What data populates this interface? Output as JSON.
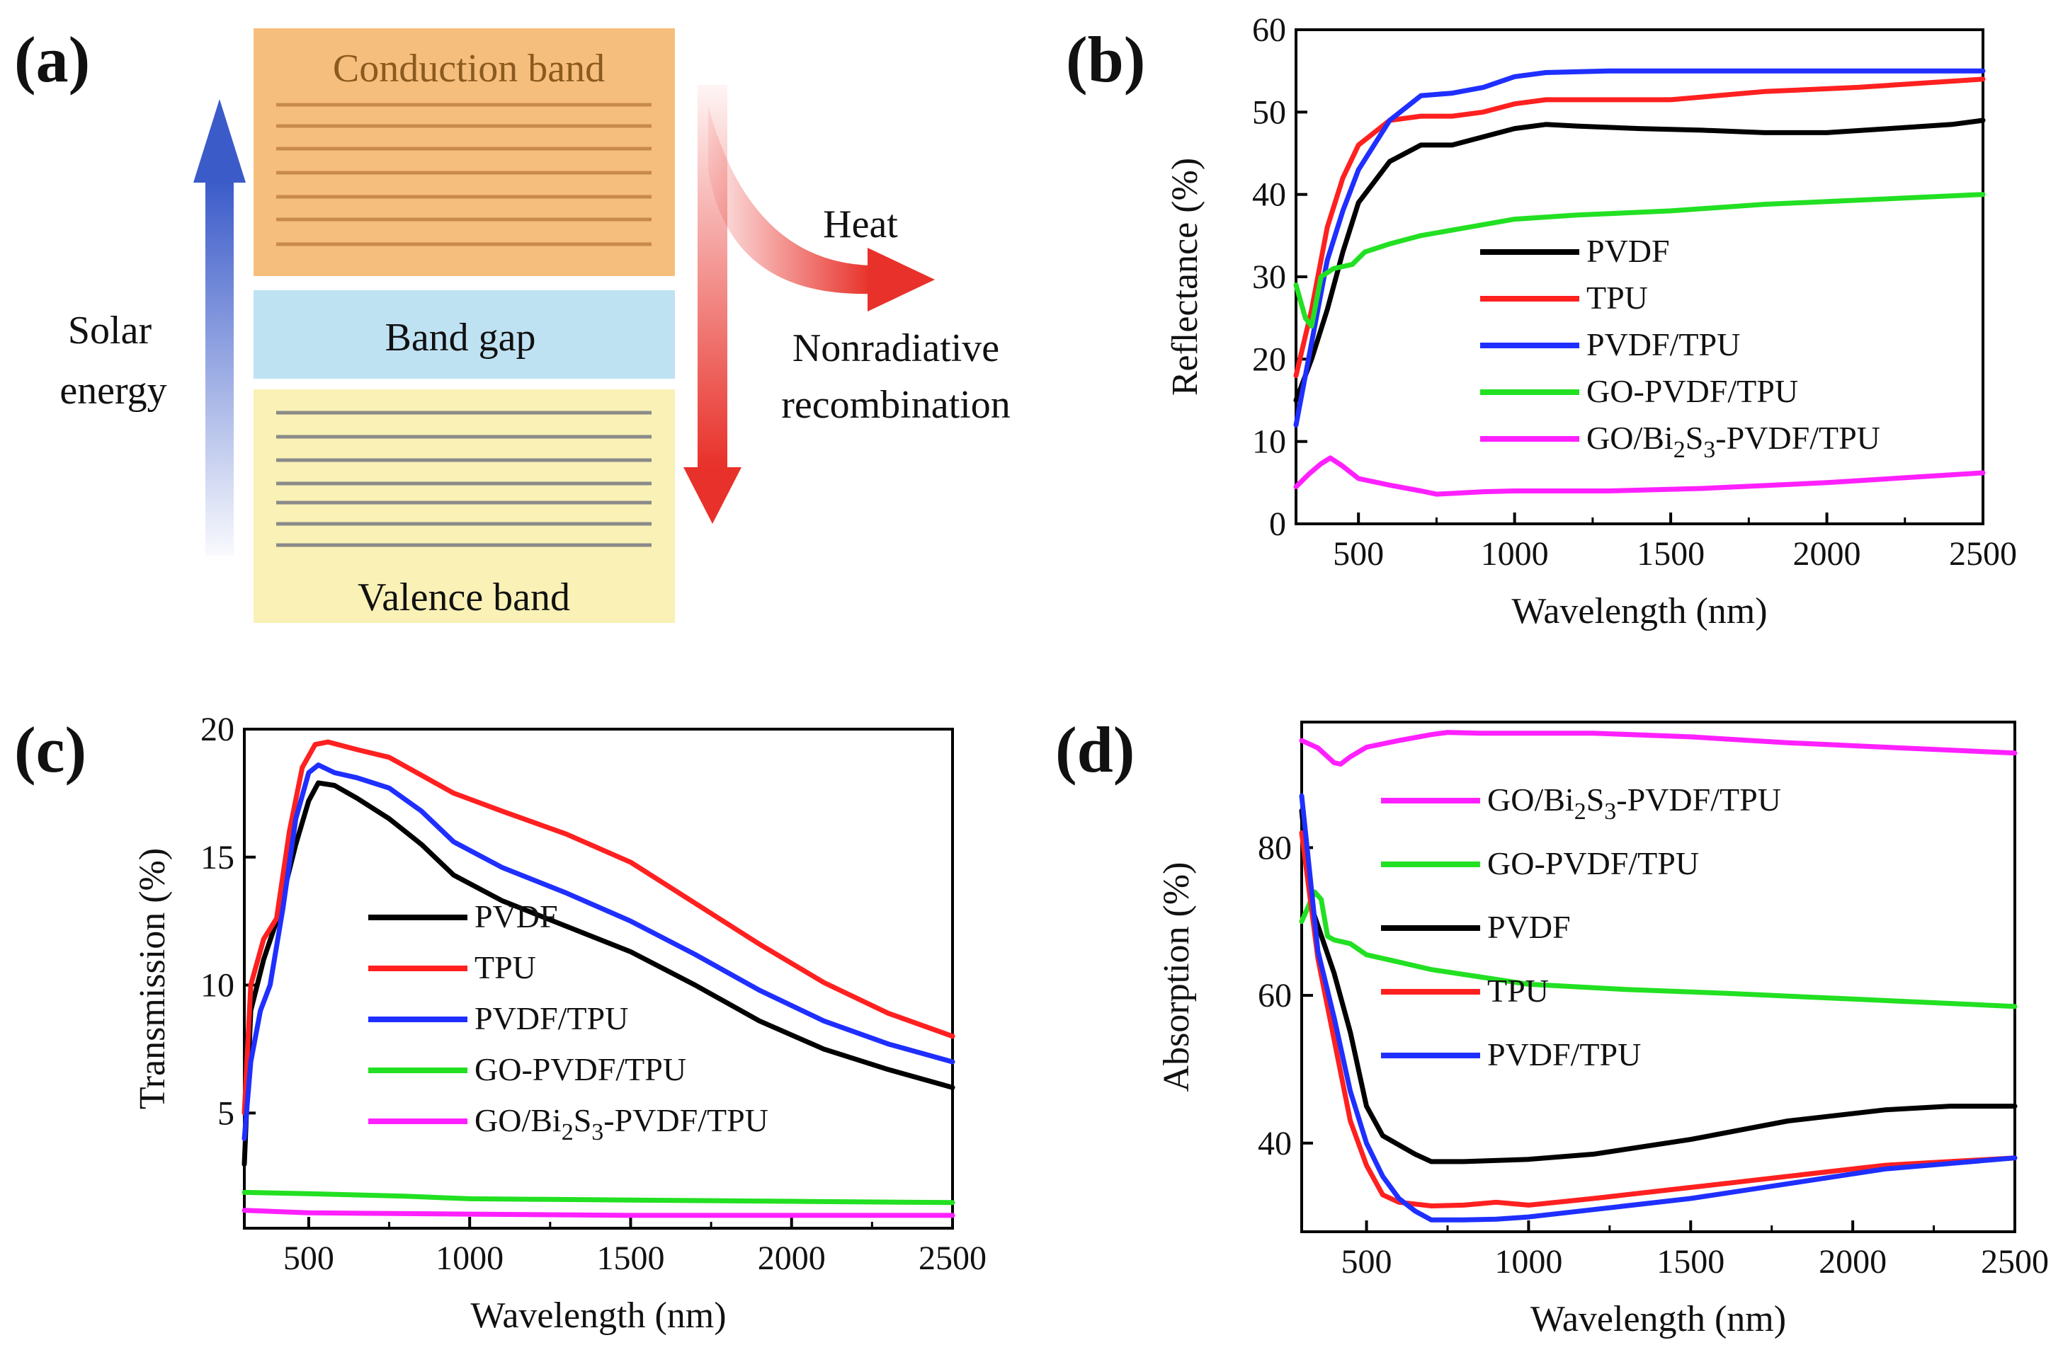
{
  "panel_labels": {
    "a": "(a)",
    "b": "(b)",
    "c": "(c)",
    "d": "(d)"
  },
  "diagram": {
    "conduction_band": "Conduction band",
    "band_gap": "Band gap",
    "valence_band": "Valence band",
    "solar_line1": "Solar",
    "solar_line2": "energy",
    "heat": "Heat",
    "nonrad_line1": "Nonradiative",
    "nonrad_line2": "recombination",
    "colors": {
      "conduction": "#f6be7d",
      "gap": "#bfe2f3",
      "valence": "#f9f1b5",
      "arrow_blue": "#3b5bc9",
      "arrow_red": "#e8312a"
    }
  },
  "colors": {
    "PVDF": "#000000",
    "TPU": "#ff2020",
    "PVDF/TPU": "#1f2fff",
    "GO-PVDF/TPU": "#22e022",
    "GO/Bi2S3-PVDF/TPU": "#ff20ff"
  },
  "legend_text": {
    "PVDF": "PVDF",
    "TPU": "TPU",
    "PVDF/TPU": "PVDF/TPU",
    "GO-PVDF/TPU": "GO-PVDF/TPU",
    "GO_prefix": "GO/Bi",
    "sub2": "2",
    "S": "S",
    "sub3": "3",
    "GO_suffix": "-PVDF/TPU"
  },
  "chart_data": [
    {
      "id": "b",
      "type": "line",
      "xlabel": "Wavelength (nm)",
      "ylabel": "Reflectance (%)",
      "xlim": [
        300,
        2500
      ],
      "ylim": [
        0,
        60
      ],
      "xticks": [
        500,
        1000,
        1500,
        2000,
        2500
      ],
      "yticks": [
        0,
        10,
        20,
        30,
        40,
        50,
        60
      ],
      "series": [
        {
          "name": "PVDF",
          "points": [
            [
              300,
              15
            ],
            [
              350,
              20
            ],
            [
              400,
              26
            ],
            [
              450,
              33
            ],
            [
              500,
              39
            ],
            [
              600,
              44
            ],
            [
              700,
              46
            ],
            [
              800,
              46
            ],
            [
              900,
              47
            ],
            [
              1000,
              48
            ],
            [
              1100,
              48.5
            ],
            [
              1200,
              48.3
            ],
            [
              1400,
              48
            ],
            [
              1600,
              47.8
            ],
            [
              1800,
              47.5
            ],
            [
              2000,
              47.5
            ],
            [
              2200,
              48
            ],
            [
              2400,
              48.5
            ],
            [
              2500,
              49
            ]
          ]
        },
        {
          "name": "TPU",
          "points": [
            [
              300,
              18
            ],
            [
              350,
              26
            ],
            [
              400,
              36
            ],
            [
              450,
              42
            ],
            [
              500,
              46
            ],
            [
              600,
              49
            ],
            [
              700,
              49.5
            ],
            [
              800,
              49.5
            ],
            [
              900,
              50
            ],
            [
              1000,
              51
            ],
            [
              1100,
              51.5
            ],
            [
              1300,
              51.5
            ],
            [
              1500,
              51.5
            ],
            [
              1800,
              52.5
            ],
            [
              2100,
              53
            ],
            [
              2500,
              54
            ]
          ]
        },
        {
          "name": "PVDF/TPU",
          "points": [
            [
              300,
              12
            ],
            [
              350,
              22
            ],
            [
              400,
              32
            ],
            [
              450,
              38
            ],
            [
              500,
              43
            ],
            [
              600,
              49
            ],
            [
              700,
              52
            ],
            [
              800,
              52.3
            ],
            [
              900,
              53
            ],
            [
              1000,
              54.3
            ],
            [
              1100,
              54.8
            ],
            [
              1300,
              55
            ],
            [
              1600,
              55
            ],
            [
              2000,
              55
            ],
            [
              2500,
              55
            ]
          ]
        },
        {
          "name": "GO-PVDF/TPU",
          "points": [
            [
              300,
              29
            ],
            [
              330,
              25
            ],
            [
              350,
              24
            ],
            [
              380,
              30
            ],
            [
              420,
              31
            ],
            [
              480,
              31.5
            ],
            [
              520,
              33
            ],
            [
              600,
              34
            ],
            [
              700,
              35
            ],
            [
              850,
              36
            ],
            [
              1000,
              37
            ],
            [
              1200,
              37.5
            ],
            [
              1500,
              38
            ],
            [
              1800,
              38.8
            ],
            [
              2100,
              39.3
            ],
            [
              2500,
              40
            ]
          ]
        },
        {
          "name": "GO/Bi2S3-PVDF/TPU",
          "points": [
            [
              300,
              4.5
            ],
            [
              340,
              6
            ],
            [
              380,
              7.3
            ],
            [
              410,
              8
            ],
            [
              450,
              7
            ],
            [
              500,
              5.5
            ],
            [
              600,
              4.7
            ],
            [
              700,
              4
            ],
            [
              750,
              3.6
            ],
            [
              800,
              3.7
            ],
            [
              900,
              3.9
            ],
            [
              1000,
              4
            ],
            [
              1300,
              4
            ],
            [
              1600,
              4.3
            ],
            [
              2000,
              5
            ],
            [
              2500,
              6.2
            ]
          ]
        }
      ]
    },
    {
      "id": "c",
      "type": "line",
      "xlabel": "Wavelength (nm)",
      "ylabel": "Transmission (%)",
      "xlim": [
        300,
        2500
      ],
      "ylim": [
        0.5,
        20
      ],
      "xticks": [
        500,
        1000,
        1500,
        2000,
        2500
      ],
      "yticks": [
        5,
        10,
        15,
        20
      ],
      "series": [
        {
          "name": "PVDF",
          "points": [
            [
              300,
              3
            ],
            [
              320,
              9
            ],
            [
              360,
              11
            ],
            [
              400,
              12.5
            ],
            [
              430,
              14
            ],
            [
              460,
              15.5
            ],
            [
              500,
              17.2
            ],
            [
              530,
              17.9
            ],
            [
              580,
              17.8
            ],
            [
              650,
              17.3
            ],
            [
              750,
              16.5
            ],
            [
              850,
              15.5
            ],
            [
              950,
              14.3
            ],
            [
              1100,
              13.3
            ],
            [
              1300,
              12.3
            ],
            [
              1500,
              11.3
            ],
            [
              1700,
              10
            ],
            [
              1900,
              8.6
            ],
            [
              2100,
              7.5
            ],
            [
              2300,
              6.7
            ],
            [
              2500,
              6
            ]
          ]
        },
        {
          "name": "TPU",
          "points": [
            [
              300,
              5
            ],
            [
              320,
              10
            ],
            [
              360,
              11.8
            ],
            [
              400,
              12.6
            ],
            [
              440,
              16
            ],
            [
              480,
              18.5
            ],
            [
              520,
              19.4
            ],
            [
              560,
              19.5
            ],
            [
              650,
              19.2
            ],
            [
              750,
              18.9
            ],
            [
              850,
              18.2
            ],
            [
              950,
              17.5
            ],
            [
              1100,
              16.8
            ],
            [
              1300,
              15.9
            ],
            [
              1500,
              14.8
            ],
            [
              1700,
              13.2
            ],
            [
              1900,
              11.6
            ],
            [
              2100,
              10.1
            ],
            [
              2300,
              8.9
            ],
            [
              2500,
              8
            ]
          ]
        },
        {
          "name": "PVDF/TPU",
          "points": [
            [
              300,
              4
            ],
            [
              320,
              7
            ],
            [
              350,
              9
            ],
            [
              380,
              10
            ],
            [
              420,
              13
            ],
            [
              460,
              16.5
            ],
            [
              500,
              18.3
            ],
            [
              530,
              18.6
            ],
            [
              580,
              18.3
            ],
            [
              650,
              18.1
            ],
            [
              750,
              17.7
            ],
            [
              850,
              16.8
            ],
            [
              950,
              15.6
            ],
            [
              1100,
              14.6
            ],
            [
              1300,
              13.6
            ],
            [
              1500,
              12.5
            ],
            [
              1700,
              11.2
            ],
            [
              1900,
              9.8
            ],
            [
              2100,
              8.6
            ],
            [
              2300,
              7.7
            ],
            [
              2500,
              7
            ]
          ]
        },
        {
          "name": "GO-PVDF/TPU",
          "points": [
            [
              300,
              1.9
            ],
            [
              500,
              1.85
            ],
            [
              800,
              1.75
            ],
            [
              1000,
              1.65
            ],
            [
              1500,
              1.6
            ],
            [
              2000,
              1.55
            ],
            [
              2500,
              1.5
            ]
          ]
        },
        {
          "name": "GO/Bi2S3-PVDF/TPU",
          "points": [
            [
              300,
              1.2
            ],
            [
              500,
              1.1
            ],
            [
              1000,
              1.05
            ],
            [
              1500,
              1.0
            ],
            [
              2000,
              1.0
            ],
            [
              2500,
              1.0
            ]
          ]
        }
      ]
    },
    {
      "id": "d",
      "type": "line",
      "xlabel": "Wavelength (nm)",
      "ylabel": "Absorption (%)",
      "xlim": [
        300,
        2500
      ],
      "ylim": [
        28,
        97
      ],
      "xticks": [
        500,
        1000,
        1500,
        2000,
        2500
      ],
      "yticks": [
        40,
        60,
        80
      ],
      "series": [
        {
          "name": "GO/Bi2S3-PVDF/TPU",
          "points": [
            [
              300,
              94.5
            ],
            [
              350,
              93.5
            ],
            [
              400,
              91.5
            ],
            [
              420,
              91.3
            ],
            [
              450,
              92.3
            ],
            [
              500,
              93.6
            ],
            [
              600,
              94.5
            ],
            [
              700,
              95.3
            ],
            [
              750,
              95.6
            ],
            [
              850,
              95.5
            ],
            [
              1000,
              95.5
            ],
            [
              1200,
              95.5
            ],
            [
              1500,
              95
            ],
            [
              1800,
              94.2
            ],
            [
              2100,
              93.6
            ],
            [
              2500,
              92.8
            ]
          ]
        },
        {
          "name": "GO-PVDF/TPU",
          "points": [
            [
              300,
              70
            ],
            [
              320,
              72
            ],
            [
              340,
              74
            ],
            [
              360,
              73
            ],
            [
              380,
              68
            ],
            [
              400,
              67.5
            ],
            [
              450,
              67
            ],
            [
              500,
              65.5
            ],
            [
              600,
              64.5
            ],
            [
              700,
              63.5
            ],
            [
              850,
              62.5
            ],
            [
              1000,
              61.5
            ],
            [
              1300,
              60.8
            ],
            [
              1600,
              60.3
            ],
            [
              2000,
              59.5
            ],
            [
              2500,
              58.5
            ]
          ]
        },
        {
          "name": "PVDF",
          "points": [
            [
              300,
              85
            ],
            [
              330,
              72
            ],
            [
              400,
              63
            ],
            [
              450,
              55
            ],
            [
              500,
              45
            ],
            [
              550,
              41
            ],
            [
              650,
              38.5
            ],
            [
              700,
              37.5
            ],
            [
              800,
              37.5
            ],
            [
              1000,
              37.8
            ],
            [
              1200,
              38.5
            ],
            [
              1500,
              40.5
            ],
            [
              1800,
              43
            ],
            [
              2100,
              44.5
            ],
            [
              2300,
              45
            ],
            [
              2500,
              45
            ]
          ]
        },
        {
          "name": "TPU",
          "points": [
            [
              300,
              82
            ],
            [
              350,
              65
            ],
            [
              400,
              54
            ],
            [
              450,
              43
            ],
            [
              500,
              37
            ],
            [
              550,
              33
            ],
            [
              600,
              32
            ],
            [
              700,
              31.5
            ],
            [
              800,
              31.6
            ],
            [
              900,
              32
            ],
            [
              1000,
              31.6
            ],
            [
              1200,
              32.5
            ],
            [
              1500,
              34
            ],
            [
              1800,
              35.5
            ],
            [
              2100,
              37
            ],
            [
              2500,
              38
            ]
          ]
        },
        {
          "name": "PVDF/TPU",
          "points": [
            [
              300,
              87
            ],
            [
              350,
              66
            ],
            [
              400,
              57
            ],
            [
              450,
              47
            ],
            [
              500,
              40
            ],
            [
              550,
              35.5
            ],
            [
              600,
              32.5
            ],
            [
              650,
              30.8
            ],
            [
              700,
              29.6
            ],
            [
              800,
              29.6
            ],
            [
              900,
              29.7
            ],
            [
              1000,
              30
            ],
            [
              1200,
              31
            ],
            [
              1500,
              32.5
            ],
            [
              1800,
              34.5
            ],
            [
              2100,
              36.5
            ],
            [
              2500,
              38
            ]
          ]
        }
      ]
    }
  ]
}
